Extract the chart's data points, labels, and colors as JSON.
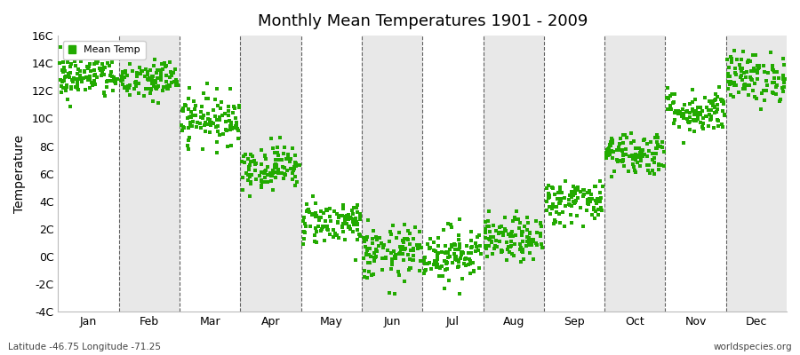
{
  "title": "Monthly Mean Temperatures 1901 - 2009",
  "ylabel": "Temperature",
  "bottom_left_text": "Latitude -46.75 Longitude -71.25",
  "bottom_right_text": "worldspecies.org",
  "legend_label": "Mean Temp",
  "marker_color": "#22AA00",
  "background_color": "#FFFFFF",
  "band_color": "#E8E8E8",
  "ylim": [
    -4,
    16
  ],
  "ytick_labels": [
    "-4C",
    "-2C",
    "0C",
    "2C",
    "4C",
    "6C",
    "8C",
    "10C",
    "12C",
    "14C",
    "16C"
  ],
  "ytick_values": [
    -4,
    -2,
    0,
    2,
    4,
    6,
    8,
    10,
    12,
    14,
    16
  ],
  "months": [
    "Jan",
    "Feb",
    "Mar",
    "Apr",
    "May",
    "Jun",
    "Jul",
    "Aug",
    "Sep",
    "Oct",
    "Nov",
    "Dec"
  ],
  "monthly_means": [
    13.0,
    12.8,
    10.0,
    6.5,
    2.5,
    0.2,
    0.2,
    1.2,
    4.0,
    7.5,
    10.5,
    13.0
  ],
  "monthly_stds": [
    0.8,
    0.8,
    0.9,
    0.8,
    0.8,
    1.0,
    1.0,
    0.8,
    0.8,
    0.8,
    0.8,
    0.9
  ],
  "n_years": 109,
  "seed": 42,
  "marker_size": 5
}
